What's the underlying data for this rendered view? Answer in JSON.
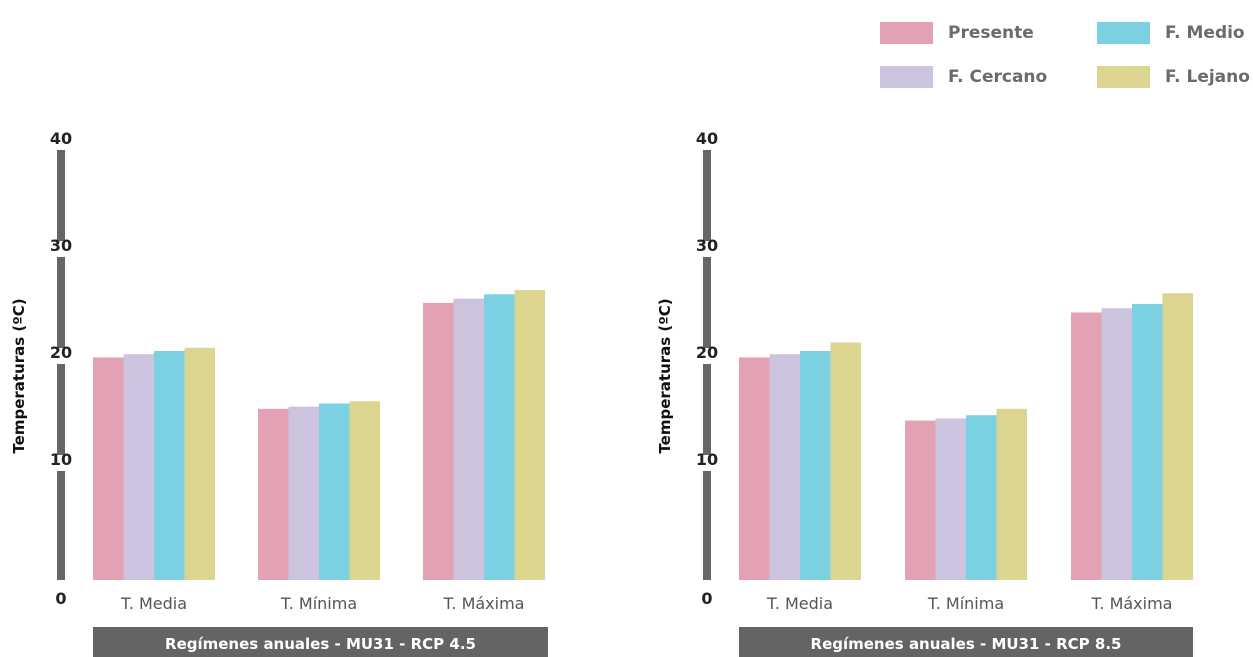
{
  "legend": {
    "items": [
      {
        "label": "Presente",
        "color": "#e2a2b4"
      },
      {
        "label": "F. Medio",
        "color": "#7bd0e2"
      },
      {
        "label": "F. Cercano",
        "color": "#ccc4de"
      },
      {
        "label": "F. Lejano",
        "color": "#dcd590"
      }
    ]
  },
  "chart_data": [
    {
      "type": "bar",
      "title": "Regímenes anuales - MU31 - RCP 4.5",
      "ylabel": "Temperaturas (ºC)",
      "xlabel": "",
      "categories": [
        "T. Media",
        "T. Mínima",
        "T. Máxima"
      ],
      "ylim": [
        0,
        40
      ],
      "yticks": [
        0,
        10,
        20,
        30,
        40
      ],
      "grid": false,
      "legend_position": "top-right",
      "series": [
        {
          "name": "Presente",
          "color": "#e2a2b4",
          "values": [
            20.8,
            16.0,
            25.9
          ]
        },
        {
          "name": "F. Cercano",
          "color": "#ccc4de",
          "values": [
            21.1,
            16.2,
            26.3
          ]
        },
        {
          "name": "F. Medio",
          "color": "#7bd0e2",
          "values": [
            21.4,
            16.5,
            26.7
          ]
        },
        {
          "name": "F. Lejano",
          "color": "#dcd590",
          "values": [
            21.7,
            16.7,
            27.1
          ]
        }
      ]
    },
    {
      "type": "bar",
      "title": "Regímenes anuales - MU31 - RCP 8.5",
      "ylabel": "Temperaturas (ºC)",
      "xlabel": "",
      "categories": [
        "T. Media",
        "T. Mínima",
        "T. Máxima"
      ],
      "ylim": [
        0,
        40
      ],
      "yticks": [
        0,
        10,
        20,
        30,
        40
      ],
      "grid": false,
      "legend_position": "top-right",
      "series": [
        {
          "name": "Presente",
          "color": "#e2a2b4",
          "values": [
            20.8,
            14.9,
            25.0
          ]
        },
        {
          "name": "F. Cercano",
          "color": "#ccc4de",
          "values": [
            21.1,
            15.1,
            25.4
          ]
        },
        {
          "name": "F. Medio",
          "color": "#7bd0e2",
          "values": [
            21.4,
            15.4,
            25.8
          ]
        },
        {
          "name": "F. Lejano",
          "color": "#dcd590",
          "values": [
            22.2,
            16.0,
            26.8
          ]
        }
      ]
    }
  ]
}
